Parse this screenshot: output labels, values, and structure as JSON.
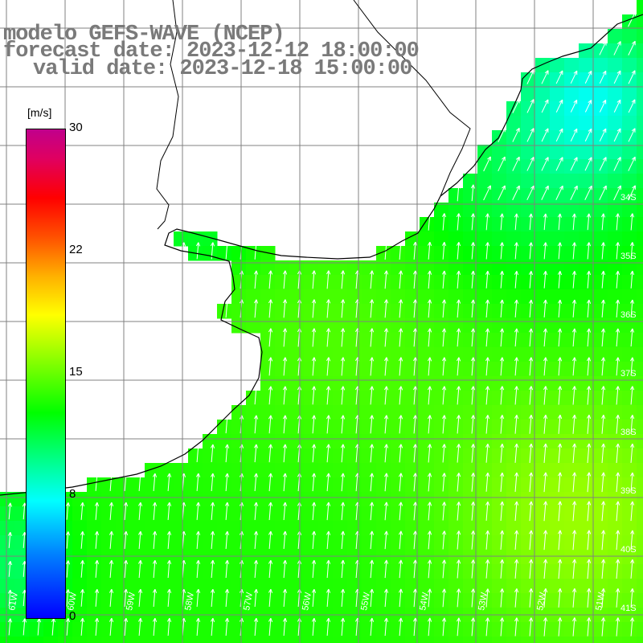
{
  "header": {
    "line1": "modelo GEFS-WAVE (NCEP)",
    "line2": "forecast date: 2023-12-12 18:00:00",
    "line3": "valid date: 2023-12-18 15:00:00"
  },
  "colorbar": {
    "unit": "[m/s]",
    "ticks": [
      "30",
      "22",
      "15",
      "8",
      "0"
    ]
  },
  "map": {
    "lat_labels": [
      "34S",
      "35S",
      "36S",
      "37S",
      "38S",
      "39S",
      "40S",
      "41S"
    ],
    "lon_labels": [
      "61W",
      "60W",
      "59W",
      "58W",
      "57W",
      "56W",
      "55W",
      "54W",
      "53W",
      "52W",
      "51W"
    ],
    "variable": "wind speed",
    "colors": {
      "land": "#ffffff",
      "grid": "#808080",
      "coast": "#000000",
      "arrows": "#ffffff",
      "title": "#7a7a7a"
    }
  }
}
